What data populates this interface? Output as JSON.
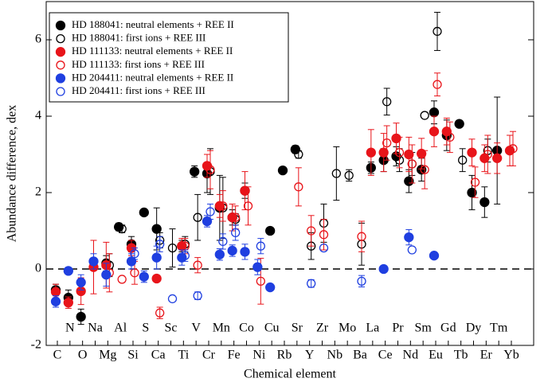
{
  "chart_data": {
    "type": "scatter",
    "xlabel": "Chemical element",
    "ylabel": "Abundance difference, dex",
    "categories": [
      "C",
      "N",
      "O",
      "Na",
      "Mg",
      "Al",
      "Si",
      "S",
      "Ca",
      "Sc",
      "Ti",
      "V",
      "Cr",
      "Mn",
      "Fe",
      "Co",
      "Ni",
      "Cu",
      "Rb",
      "Sr",
      "Y",
      "Zr",
      "Nb",
      "Mo",
      "Ba",
      "La",
      "Ce",
      "Pr",
      "Nd",
      "Sm",
      "Eu",
      "Gd",
      "Tb",
      "Dy",
      "Er",
      "Tm",
      "Yb"
    ],
    "ylim": [
      -2,
      7
    ],
    "yticks": [
      -2,
      0,
      2,
      4,
      6
    ],
    "reference_line": 0,
    "legend": "upper left",
    "series": [
      {
        "name": "HD 188041: neutral elements + REE II",
        "color": "#000000",
        "filled": true,
        "values": [
          -0.55,
          -0.75,
          -1.25,
          null,
          0.15,
          1.1,
          0.65,
          1.48,
          1.05,
          null,
          0.6,
          2.55,
          2.5,
          1.6,
          1.35,
          2.05,
          null,
          1.0,
          2.58,
          3.13,
          null,
          null,
          null,
          null,
          null,
          2.65,
          2.85,
          2.95,
          2.3,
          2.6,
          4.1,
          3.5,
          3.8,
          2.0,
          1.75,
          3.1,
          null
        ],
        "errors": [
          0.15,
          0.2,
          0.2,
          null,
          0.2,
          0.1,
          0.2,
          null,
          0.55,
          null,
          0.15,
          0.15,
          0.5,
          0.85,
          0.2,
          0.2,
          null,
          null,
          null,
          0.1,
          null,
          null,
          null,
          null,
          null,
          0.15,
          0.3,
          0.25,
          0.3,
          0.3,
          0.3,
          0.4,
          null,
          0.45,
          0.4,
          1.4,
          null
        ]
      },
      {
        "name": "HD 188041: first ions + REE III",
        "color": "#000000",
        "filled": false,
        "values": [
          null,
          null,
          null,
          null,
          0.1,
          1.05,
          null,
          null,
          0.75,
          0.55,
          0.65,
          1.35,
          2.55,
          1.6,
          1.3,
          null,
          null,
          null,
          null,
          3.0,
          0.6,
          1.2,
          2.5,
          2.45,
          0.65,
          null,
          4.38,
          2.85,
          2.75,
          4.02,
          6.22,
          null,
          2.85,
          null,
          3.1,
          null,
          null
        ],
        "errors": [
          null,
          null,
          null,
          null,
          0.3,
          0.1,
          null,
          null,
          0.2,
          0.5,
          0.2,
          0.6,
          0.6,
          0.8,
          0.15,
          null,
          null,
          null,
          null,
          0.1,
          0.35,
          0.5,
          0.7,
          0.15,
          0.55,
          null,
          0.35,
          0.3,
          0.3,
          null,
          0.5,
          null,
          0.3,
          null,
          0.3,
          null,
          null
        ]
      },
      {
        "name": "HD 111133: neutral elements + REE II",
        "color": "#e8141a",
        "filled": true,
        "values": [
          -0.6,
          -0.88,
          -0.58,
          0.05,
          0.1,
          null,
          0.55,
          null,
          -0.25,
          null,
          0.6,
          null,
          2.7,
          1.65,
          1.35,
          2.05,
          null,
          null,
          null,
          null,
          null,
          null,
          null,
          null,
          null,
          3.05,
          3.05,
          3.42,
          3.0,
          3.02,
          3.6,
          3.6,
          null,
          3.05,
          2.9,
          2.9,
          3.1
        ],
        "errors": [
          0.2,
          0.15,
          0.35,
          0.7,
          0.6,
          null,
          0.2,
          null,
          null,
          null,
          0.2,
          null,
          0.3,
          0.3,
          0.35,
          0.5,
          null,
          null,
          null,
          null,
          null,
          null,
          null,
          null,
          null,
          0.6,
          0.5,
          0.4,
          0.45,
          0.4,
          0.4,
          0.35,
          null,
          0.35,
          0.35,
          0.4,
          0.4
        ]
      },
      {
        "name": "HD 111133: first ions + REE III",
        "color": "#e8141a",
        "filled": false,
        "values": [
          null,
          null,
          null,
          null,
          -0.1,
          -0.27,
          -0.1,
          null,
          -1.15,
          null,
          0.6,
          0.1,
          2.6,
          1.65,
          1.35,
          1.65,
          -0.32,
          null,
          null,
          2.15,
          1.0,
          0.9,
          null,
          null,
          0.85,
          null,
          3.3,
          3.05,
          2.75,
          2.6,
          4.83,
          3.45,
          null,
          2.27,
          3.0,
          null,
          3.15
        ],
        "errors": [
          null,
          null,
          null,
          null,
          0.5,
          null,
          0.3,
          null,
          0.15,
          null,
          0.2,
          0.2,
          0.5,
          0.4,
          0.3,
          0.5,
          0.6,
          null,
          null,
          0.5,
          0.4,
          0.4,
          null,
          null,
          0.4,
          null,
          0.45,
          0.4,
          0.5,
          0.5,
          0.3,
          0.4,
          null,
          0.4,
          0.5,
          null,
          0.45
        ]
      },
      {
        "name": "HD 204411: neutral elements + REE II",
        "color": "#1f3fe0",
        "filled": true,
        "values": [
          -0.85,
          -0.05,
          -0.35,
          0.2,
          -0.15,
          null,
          0.2,
          -0.2,
          0.3,
          null,
          0.3,
          null,
          1.25,
          0.38,
          0.48,
          0.45,
          0.05,
          -0.48,
          null,
          null,
          null,
          null,
          null,
          null,
          null,
          null,
          0.0,
          null,
          0.83,
          null,
          0.35,
          null,
          null,
          null,
          null,
          null,
          null
        ],
        "errors": [
          0.15,
          null,
          0.2,
          0.2,
          0.3,
          null,
          0.2,
          0.15,
          0.3,
          null,
          0.2,
          null,
          0.15,
          0.15,
          0.15,
          0.2,
          0.2,
          null,
          null,
          null,
          null,
          null,
          null,
          null,
          null,
          null,
          null,
          null,
          0.2,
          null,
          null,
          null,
          null,
          null,
          null,
          null,
          null
        ]
      },
      {
        "name": "HD 204411: first ions + REE III",
        "color": "#1f3fe0",
        "filled": false,
        "values": [
          null,
          null,
          null,
          null,
          null,
          null,
          0.4,
          null,
          0.65,
          -0.78,
          0.35,
          -0.7,
          1.5,
          0.72,
          0.95,
          null,
          0.6,
          null,
          null,
          null,
          -0.38,
          0.55,
          null,
          null,
          -0.32,
          null,
          null,
          null,
          0.5,
          null,
          null,
          null,
          null,
          null,
          null,
          null,
          null
        ],
        "errors": [
          null,
          null,
          null,
          null,
          null,
          null,
          0.15,
          null,
          0.2,
          null,
          0.15,
          0.1,
          0.2,
          0.2,
          0.2,
          null,
          0.2,
          null,
          null,
          null,
          0.1,
          null,
          null,
          null,
          0.15,
          null,
          null,
          null,
          null,
          null,
          null,
          null,
          null,
          null,
          null,
          null,
          null
        ]
      }
    ]
  }
}
